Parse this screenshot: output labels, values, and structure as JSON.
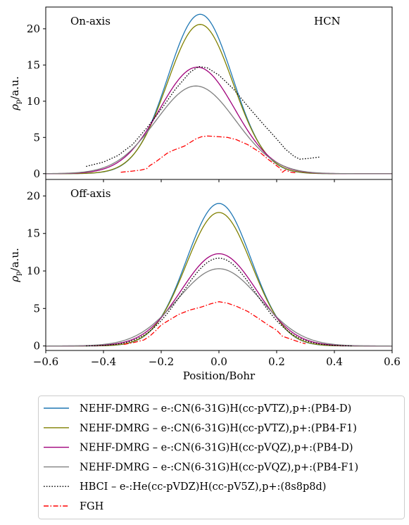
{
  "chart_data": [
    {
      "type": "line",
      "panel_label": "On-axis",
      "annotation": "HCN",
      "xlim": [
        -0.6,
        0.6
      ],
      "ylim": [
        -0.8,
        23.0
      ],
      "yticks": [
        0,
        5,
        10,
        15,
        20
      ],
      "ylabel_main": "ρ",
      "ylabel_sub": "p",
      "ylabel_unit": "/a.u.",
      "series": [
        {
          "name": "NEHF-DMRG – e-:CN(6-31G)H(cc-pVTZ),p+:(PB4-D)",
          "color": "#1f77b4",
          "style": "solid",
          "peak": 22.0,
          "center": -0.065,
          "sigma": 0.112,
          "x_range": [
            -0.6,
            0.6
          ]
        },
        {
          "name": "NEHF-DMRG – e-:CN(6-31G)H(cc-pVTZ),p+:(PB4-F1)",
          "color": "#808000",
          "style": "solid",
          "peak": 20.6,
          "center": -0.065,
          "sigma": 0.114,
          "x_range": [
            -0.6,
            0.6
          ]
        },
        {
          "name": "NEHF-DMRG – e-:CN(6-31G)H(cc-pVQZ),p+:(PB4-D)",
          "color": "#a0007a",
          "style": "solid",
          "peak": 14.7,
          "center": -0.075,
          "sigma": 0.13,
          "x_range": [
            -0.6,
            0.6
          ]
        },
        {
          "name": "NEHF-DMRG – e-:CN(6-31G)H(cc-pVQZ),p+:(PB4-F1)",
          "color": "#808080",
          "style": "solid",
          "peak": 12.1,
          "center": -0.08,
          "sigma": 0.138,
          "x_range": [
            -0.6,
            0.6
          ]
        },
        {
          "name": "HBCI – e-:He(cc-pVDZ)H(cc-pV5Z),p+:(8s8p8d)",
          "color": "#000000",
          "style": "dotted",
          "points": [
            [
              -0.46,
              1.0
            ],
            [
              -0.4,
              1.6
            ],
            [
              -0.35,
              2.5
            ],
            [
              -0.3,
              4.0
            ],
            [
              -0.25,
              6.3
            ],
            [
              -0.2,
              8.9
            ],
            [
              -0.15,
              11.7
            ],
            [
              -0.1,
              14.0
            ],
            [
              -0.07,
              14.8
            ],
            [
              -0.04,
              14.6
            ],
            [
              0.0,
              13.6
            ],
            [
              0.05,
              11.7
            ],
            [
              0.1,
              9.3
            ],
            [
              0.15,
              7.0
            ],
            [
              0.2,
              4.8
            ],
            [
              0.23,
              3.4
            ],
            [
              0.26,
              2.4
            ],
            [
              0.28,
              2.0
            ],
            [
              0.31,
              2.1
            ],
            [
              0.35,
              2.3
            ]
          ]
        },
        {
          "name": "FGH",
          "color": "#ff0000",
          "style": "dashdot",
          "points": [
            [
              -0.34,
              0.2
            ],
            [
              -0.3,
              0.35
            ],
            [
              -0.27,
              0.5
            ],
            [
              -0.25,
              0.7
            ],
            [
              -0.24,
              1.1
            ],
            [
              -0.22,
              1.6
            ],
            [
              -0.2,
              2.2
            ],
            [
              -0.18,
              2.8
            ],
            [
              -0.16,
              3.2
            ],
            [
              -0.14,
              3.5
            ],
            [
              -0.12,
              3.8
            ],
            [
              -0.1,
              4.3
            ],
            [
              -0.08,
              4.8
            ],
            [
              -0.06,
              5.1
            ],
            [
              -0.04,
              5.2
            ],
            [
              0.0,
              5.1
            ],
            [
              0.03,
              5.0
            ],
            [
              0.06,
              4.7
            ],
            [
              0.1,
              4.0
            ],
            [
              0.14,
              3.0
            ],
            [
              0.17,
              2.0
            ],
            [
              0.2,
              1.1
            ],
            [
              0.21,
              0.8
            ],
            [
              0.22,
              0.2
            ],
            [
              0.23,
              0.5
            ],
            [
              0.25,
              0.2
            ],
            [
              0.27,
              0.1
            ]
          ]
        }
      ]
    },
    {
      "type": "line",
      "panel_label": "Off-axis",
      "xlim": [
        -0.6,
        0.6
      ],
      "ylim": [
        -0.6,
        22.2
      ],
      "yticks": [
        0,
        5,
        10,
        15,
        20
      ],
      "xticks": [
        -0.6,
        -0.4,
        -0.2,
        0.0,
        0.2,
        0.4,
        0.6
      ],
      "xtick_labels": [
        "−0.6",
        "−0.4",
        "−0.2",
        "0.0",
        "0.2",
        "0.4",
        "0.6"
      ],
      "xlabel": "Position/Bohr",
      "ylabel_main": "ρ",
      "ylabel_sub": "p",
      "ylabel_unit": "/a.u.",
      "series": [
        {
          "name": "NEHF-DMRG – e-:CN(6-31G)H(cc-pVTZ),p+:(PB4-D)",
          "color": "#1f77b4",
          "style": "solid",
          "peak": 19.0,
          "center": 0.0,
          "sigma": 0.112,
          "x_range": [
            -0.6,
            0.6
          ]
        },
        {
          "name": "NEHF-DMRG – e-:CN(6-31G)H(cc-pVTZ),p+:(PB4-F1)",
          "color": "#808000",
          "style": "solid",
          "peak": 17.8,
          "center": 0.0,
          "sigma": 0.114,
          "x_range": [
            -0.6,
            0.6
          ]
        },
        {
          "name": "NEHF-DMRG – e-:CN(6-31G)H(cc-pVQZ),p+:(PB4-D)",
          "color": "#a0007a",
          "style": "solid",
          "peak": 12.3,
          "center": 0.0,
          "sigma": 0.13,
          "x_range": [
            -0.6,
            0.6
          ]
        },
        {
          "name": "NEHF-DMRG – e-:CN(6-31G)H(cc-pVQZ),p+:(PB4-F1)",
          "color": "#808080",
          "style": "solid",
          "peak": 10.3,
          "center": 0.0,
          "sigma": 0.143,
          "x_range": [
            -0.6,
            0.6
          ]
        },
        {
          "name": "HBCI – e-:He(cc-pVDZ)H(cc-pV5Z),p+:(8s8p8d)",
          "color": "#000000",
          "style": "dotted",
          "peak": 11.7,
          "center": 0.0,
          "sigma": 0.127,
          "x_range": [
            -0.46,
            0.46
          ]
        },
        {
          "name": "FGH",
          "color": "#ff0000",
          "style": "dashdot",
          "points": [
            [
              -0.33,
              0.2
            ],
            [
              -0.29,
              0.5
            ],
            [
              -0.26,
              0.8
            ],
            [
              -0.24,
              1.3
            ],
            [
              -0.22,
              2.0
            ],
            [
              -0.2,
              2.8
            ],
            [
              -0.17,
              3.5
            ],
            [
              -0.14,
              4.2
            ],
            [
              -0.1,
              4.8
            ],
            [
              -0.06,
              5.2
            ],
            [
              -0.03,
              5.6
            ],
            [
              0.0,
              5.9
            ],
            [
              0.03,
              5.7
            ],
            [
              0.06,
              5.3
            ],
            [
              0.1,
              4.6
            ],
            [
              0.14,
              3.6
            ],
            [
              0.17,
              2.8
            ],
            [
              0.2,
              2.1
            ],
            [
              0.22,
              1.3
            ],
            [
              0.25,
              0.9
            ],
            [
              0.28,
              0.5
            ],
            [
              0.3,
              0.3
            ]
          ]
        }
      ]
    }
  ],
  "legend": [
    {
      "label": "NEHF-DMRG – e-:CN(6-31G)H(cc-pVTZ),p+:(PB4-D)",
      "color": "#1f77b4",
      "style": "solid"
    },
    {
      "label": "NEHF-DMRG – e-:CN(6-31G)H(cc-pVTZ),p+:(PB4-F1)",
      "color": "#808000",
      "style": "solid"
    },
    {
      "label": "NEHF-DMRG – e-:CN(6-31G)H(cc-pVQZ),p+:(PB4-D)",
      "color": "#a0007a",
      "style": "solid"
    },
    {
      "label": "NEHF-DMRG – e-:CN(6-31G)H(cc-pVQZ),p+:(PB4-F1)",
      "color": "#808080",
      "style": "solid"
    },
    {
      "label": "HBCI – e-:He(cc-pVDZ)H(cc-pV5Z),p+:(8s8p8d)",
      "color": "#000000",
      "style": "dotted"
    },
    {
      "label": "FGH",
      "color": "#ff0000",
      "style": "dashdot"
    }
  ]
}
